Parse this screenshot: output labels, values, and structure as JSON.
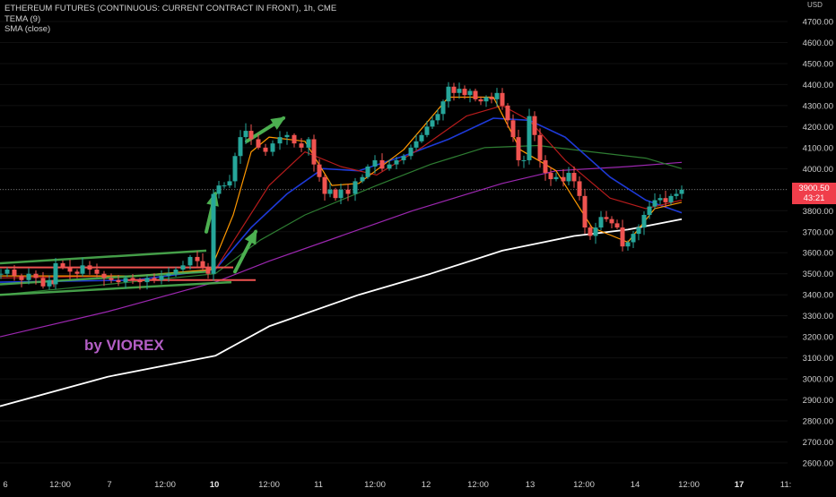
{
  "legend": {
    "title": "ETHEREUM FUTURES (CONTINUOUS: CURRENT CONTRACT IN FRONT), 1h, CME",
    "indicator1": "TEMA (9)",
    "indicator2": "SMA (close)"
  },
  "watermark": {
    "text": "by VIOREX",
    "color": "#b35ec5"
  },
  "price_tag": {
    "price": "3900.50",
    "countdown": "43:21",
    "color": "#f03e4b"
  },
  "currency": "USD",
  "colors": {
    "bull": "#26a69a",
    "bear": "#ef5350",
    "white_ma": "#ffffff",
    "purple_ma": "#9c27b0",
    "green_ma": "#2e7d32",
    "blue_ma": "#1e3ad8",
    "red_ma": "#b71c1c",
    "orange_ma": "#ff9800",
    "trend_line": "#4caf50",
    "arrow": "#4caf50",
    "horizontal_level": "#ef5350"
  },
  "chart_data": {
    "type": "candlestick",
    "title": "ETHEREUM FUTURES (CONTINUOUS: CURRENT CONTRACT IN FRONT), 1h, CME",
    "y_axis": {
      "unit": "USD",
      "range": [
        2550,
        4800
      ],
      "ticks": [
        2600,
        2700,
        2800,
        2900,
        3000,
        3100,
        3200,
        3300,
        3400,
        3500,
        3600,
        3700,
        3800,
        3900,
        4000,
        4100,
        4200,
        4300,
        4400,
        4500,
        4600,
        4700
      ]
    },
    "x_axis": {
      "labels": [
        "6",
        "12:00",
        "7",
        "12:00",
        "10",
        "12:00",
        "11",
        "12:00",
        "12",
        "12:00",
        "13",
        "12:00",
        "14",
        "12:00",
        "17",
        "11:"
      ],
      "bold_labels": [
        "10",
        "17"
      ]
    },
    "last_price": 3900.5,
    "candle_path": [
      [
        1,
        3500
      ],
      [
        8,
        3520
      ],
      [
        16,
        3490
      ],
      [
        24,
        3470
      ],
      [
        32,
        3500
      ],
      [
        40,
        3480
      ],
      [
        48,
        3440
      ],
      [
        55,
        3470
      ],
      [
        60,
        3450
      ],
      [
        62,
        3550
      ],
      [
        70,
        3530
      ],
      [
        78,
        3510
      ],
      [
        86,
        3500
      ],
      [
        92,
        3540
      ],
      [
        100,
        3520
      ],
      [
        108,
        3500
      ],
      [
        116,
        3480
      ],
      [
        124,
        3470
      ],
      [
        132,
        3460
      ],
      [
        140,
        3480
      ],
      [
        148,
        3470
      ],
      [
        156,
        3460
      ],
      [
        164,
        3480
      ],
      [
        172,
        3470
      ],
      [
        180,
        3490
      ],
      [
        188,
        3500
      ],
      [
        196,
        3520
      ],
      [
        204,
        3540
      ],
      [
        212,
        3580
      ],
      [
        220,
        3560
      ],
      [
        226,
        3530
      ],
      [
        232,
        3500
      ],
      [
        238,
        3880
      ],
      [
        244,
        3920
      ],
      [
        250,
        3920
      ],
      [
        256,
        3940
      ],
      [
        262,
        4060
      ],
      [
        268,
        4150
      ],
      [
        274,
        4180
      ],
      [
        280,
        4140
      ],
      [
        288,
        4100
      ],
      [
        296,
        4080
      ],
      [
        304,
        4120
      ],
      [
        312,
        4150
      ],
      [
        320,
        4160
      ],
      [
        328,
        4120
      ],
      [
        336,
        4100
      ],
      [
        344,
        4140
      ],
      [
        350,
        4020
      ],
      [
        356,
        3960
      ],
      [
        362,
        3880
      ],
      [
        368,
        3900
      ],
      [
        374,
        3860
      ],
      [
        380,
        3900
      ],
      [
        388,
        3880
      ],
      [
        396,
        3940
      ],
      [
        404,
        3960
      ],
      [
        410,
        4010
      ],
      [
        418,
        4040
      ],
      [
        426,
        4000
      ],
      [
        434,
        4020
      ],
      [
        442,
        4040
      ],
      [
        450,
        4060
      ],
      [
        458,
        4100
      ],
      [
        464,
        4130
      ],
      [
        470,
        4160
      ],
      [
        476,
        4200
      ],
      [
        482,
        4230
      ],
      [
        488,
        4260
      ],
      [
        494,
        4320
      ],
      [
        500,
        4390
      ],
      [
        506,
        4360
      ],
      [
        512,
        4380
      ],
      [
        518,
        4350
      ],
      [
        524,
        4370
      ],
      [
        530,
        4330
      ],
      [
        536,
        4320
      ],
      [
        542,
        4340
      ],
      [
        548,
        4330
      ],
      [
        554,
        4360
      ],
      [
        560,
        4300
      ],
      [
        566,
        4230
      ],
      [
        572,
        4150
      ],
      [
        578,
        4040
      ],
      [
        584,
        4040
      ],
      [
        590,
        4250
      ],
      [
        596,
        4160
      ],
      [
        602,
        4040
      ],
      [
        608,
        3980
      ],
      [
        614,
        3950
      ],
      [
        620,
        3960
      ],
      [
        628,
        3940
      ],
      [
        634,
        3980
      ],
      [
        640,
        3940
      ],
      [
        646,
        3870
      ],
      [
        652,
        3720
      ],
      [
        658,
        3680
      ],
      [
        664,
        3720
      ],
      [
        670,
        3770
      ],
      [
        676,
        3760
      ],
      [
        682,
        3740
      ],
      [
        688,
        3720
      ],
      [
        694,
        3630
      ],
      [
        700,
        3650
      ],
      [
        706,
        3690
      ],
      [
        712,
        3720
      ],
      [
        718,
        3780
      ],
      [
        724,
        3820
      ],
      [
        730,
        3850
      ],
      [
        736,
        3860
      ],
      [
        742,
        3840
      ],
      [
        748,
        3870
      ],
      [
        754,
        3880
      ],
      [
        760,
        3900
      ]
    ],
    "moving_averages": [
      {
        "key": "white",
        "points": [
          [
            0,
            2870
          ],
          [
            120,
            3010
          ],
          [
            240,
            3110
          ],
          [
            300,
            3250
          ],
          [
            400,
            3400
          ],
          [
            480,
            3500
          ],
          [
            560,
            3610
          ],
          [
            640,
            3680
          ],
          [
            700,
            3710
          ],
          [
            760,
            3760
          ]
        ]
      },
      {
        "key": "purple",
        "points": [
          [
            0,
            3200
          ],
          [
            120,
            3320
          ],
          [
            240,
            3460
          ],
          [
            300,
            3560
          ],
          [
            380,
            3680
          ],
          [
            460,
            3800
          ],
          [
            560,
            3930
          ],
          [
            620,
            3990
          ],
          [
            700,
            4010
          ],
          [
            760,
            4030
          ]
        ]
      },
      {
        "key": "green",
        "points": [
          [
            0,
            3400
          ],
          [
            120,
            3450
          ],
          [
            240,
            3500
          ],
          [
            290,
            3660
          ],
          [
            340,
            3780
          ],
          [
            420,
            3920
          ],
          [
            480,
            4020
          ],
          [
            540,
            4100
          ],
          [
            600,
            4110
          ],
          [
            660,
            4080
          ],
          [
            720,
            4050
          ],
          [
            760,
            4000
          ]
        ]
      },
      {
        "key": "blue",
        "points": [
          [
            0,
            3460
          ],
          [
            150,
            3470
          ],
          [
            240,
            3520
          ],
          [
            280,
            3720
          ],
          [
            320,
            3880
          ],
          [
            360,
            4000
          ],
          [
            400,
            3990
          ],
          [
            450,
            4060
          ],
          [
            500,
            4140
          ],
          [
            550,
            4240
          ],
          [
            590,
            4230
          ],
          [
            630,
            4150
          ],
          [
            680,
            3960
          ],
          [
            720,
            3850
          ],
          [
            760,
            3790
          ]
        ]
      },
      {
        "key": "red",
        "points": [
          [
            0,
            3480
          ],
          [
            150,
            3490
          ],
          [
            240,
            3520
          ],
          [
            270,
            3720
          ],
          [
            300,
            3920
          ],
          [
            340,
            4080
          ],
          [
            380,
            4010
          ],
          [
            420,
            3970
          ],
          [
            470,
            4100
          ],
          [
            520,
            4250
          ],
          [
            560,
            4300
          ],
          [
            590,
            4230
          ],
          [
            630,
            4040
          ],
          [
            680,
            3860
          ],
          [
            720,
            3810
          ],
          [
            760,
            3850
          ]
        ]
      },
      {
        "key": "orange",
        "points": [
          [
            0,
            3490
          ],
          [
            150,
            3490
          ],
          [
            235,
            3520
          ],
          [
            260,
            3780
          ],
          [
            280,
            4080
          ],
          [
            300,
            4150
          ],
          [
            340,
            4130
          ],
          [
            370,
            3920
          ],
          [
            400,
            3930
          ],
          [
            450,
            4090
          ],
          [
            500,
            4340
          ],
          [
            550,
            4340
          ],
          [
            580,
            4090
          ],
          [
            620,
            3990
          ],
          [
            660,
            3720
          ],
          [
            700,
            3650
          ],
          [
            730,
            3810
          ],
          [
            760,
            3840
          ]
        ]
      }
    ],
    "annotations": {
      "trend_lines": [
        [
          [
            0,
            3550
          ],
          [
            230,
            3610
          ]
        ],
        [
          [
            0,
            3450
          ],
          [
            230,
            3510
          ]
        ],
        [
          [
            0,
            3400
          ],
          [
            258,
            3460
          ]
        ]
      ],
      "arrows": [
        [
          [
            230,
            3700
          ],
          [
            240,
            3880
          ]
        ],
        [
          [
            262,
            3510
          ],
          [
            285,
            3700
          ]
        ],
        [
          [
            275,
            4130
          ],
          [
            316,
            4240
          ]
        ]
      ],
      "horizontal_levels": [
        [
          [
            140,
            3470
          ],
          [
            285,
            3470
          ]
        ],
        [
          [
            0,
            3530
          ],
          [
            260,
            3530
          ]
        ]
      ]
    }
  }
}
